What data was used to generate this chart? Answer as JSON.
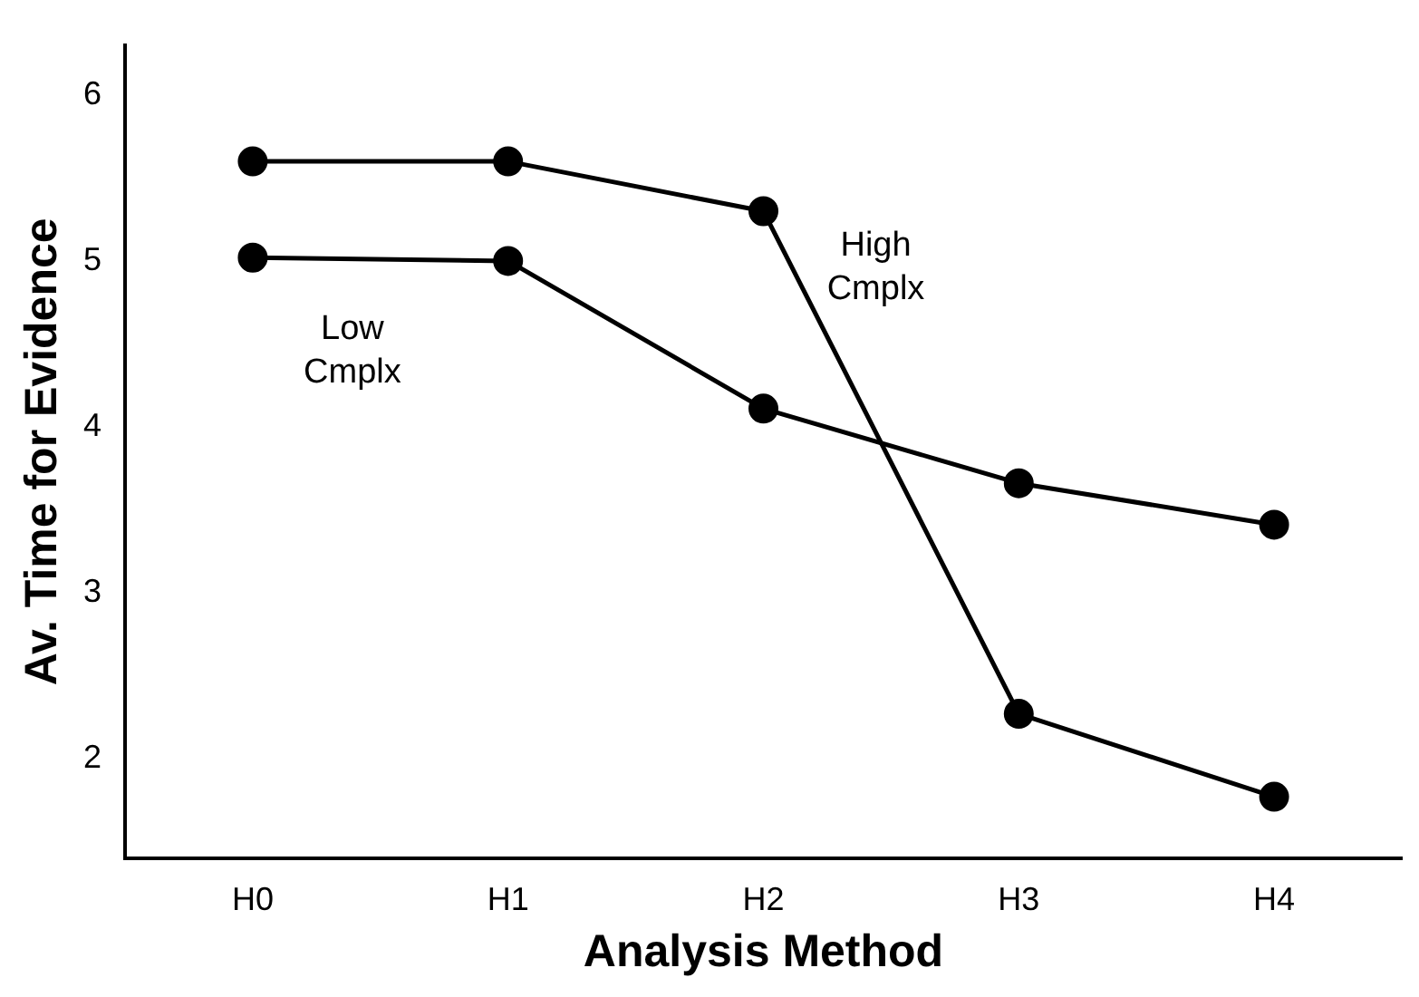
{
  "chart_data": {
    "type": "line",
    "xlabel": "Analysis Method",
    "ylabel": "Av. Time for Evidence",
    "categories": [
      "H0",
      "H1",
      "H2",
      "H3",
      "H4"
    ],
    "series": [
      {
        "name": "High Cmplx",
        "color": "#000000",
        "values": [
          5.6,
          5.6,
          5.3,
          2.27,
          1.77
        ]
      },
      {
        "name": "Low Cmplx",
        "color": "#000000",
        "values": [
          5.02,
          5.0,
          4.11,
          3.66,
          3.41
        ]
      }
    ],
    "ylim": [
      1.4,
      6.3
    ],
    "yticks": [
      2,
      3,
      4,
      5,
      6
    ],
    "grid": false,
    "legend": false,
    "marker": "circle",
    "line_style": "solid"
  }
}
